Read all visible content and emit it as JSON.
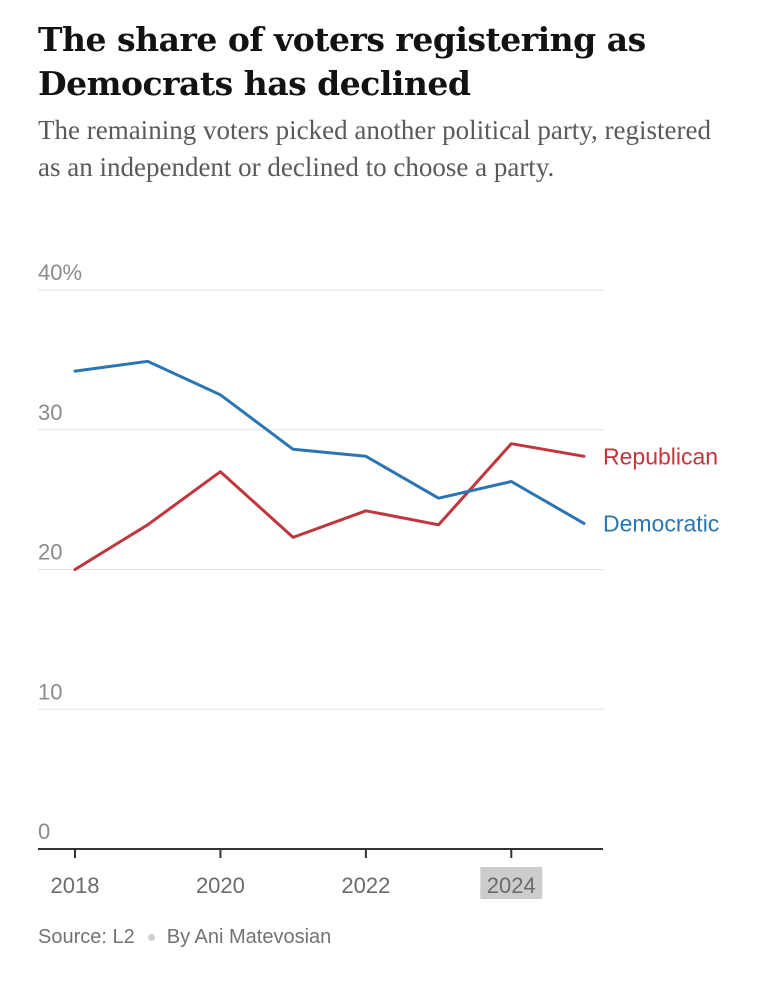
{
  "title": "The share of voters registering as Democrats has declined",
  "subtitle": "The remaining voters picked another political party, registered as an independent or declined to choose a party.",
  "chart_data": {
    "type": "line",
    "x": [
      2018,
      2019,
      2020,
      2021,
      2022,
      2023,
      2024,
      2025
    ],
    "series": [
      {
        "name": "Republican",
        "color": "#c0363c",
        "values": [
          20.0,
          23.2,
          27.0,
          22.3,
          24.2,
          23.2,
          29.0,
          28.1
        ]
      },
      {
        "name": "Democratic",
        "color": "#2a75b3",
        "values": [
          34.2,
          34.9,
          32.5,
          28.6,
          28.1,
          25.1,
          26.3,
          23.3
        ]
      }
    ],
    "y_ticks": [
      {
        "value": 0,
        "label": "0"
      },
      {
        "value": 10,
        "label": "10"
      },
      {
        "value": 20,
        "label": "20"
      },
      {
        "value": 30,
        "label": "30"
      },
      {
        "value": 40,
        "label": "40%"
      }
    ],
    "x_ticks": [
      {
        "value": 2018,
        "label": "2018",
        "highlight": false
      },
      {
        "value": 2020,
        "label": "2020",
        "highlight": false
      },
      {
        "value": 2022,
        "label": "2022",
        "highlight": false
      },
      {
        "value": 2024,
        "label": "2024",
        "highlight": true
      }
    ],
    "ylim": [
      0,
      40
    ],
    "xlim": [
      2017.5,
      2025.5
    ],
    "grid": true,
    "legend": "direct labels at line ends"
  },
  "footer": {
    "source": "Source: L2",
    "byline": "By Ani Matevosian"
  }
}
